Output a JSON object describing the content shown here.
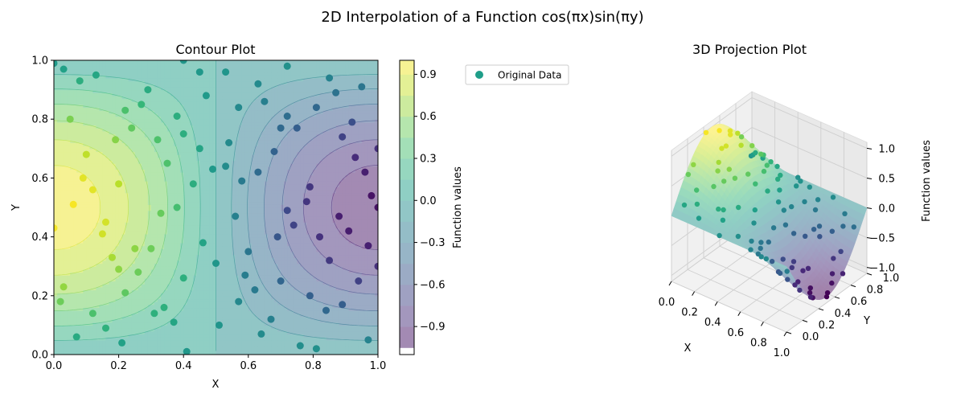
{
  "figure": {
    "suptitle": "2D Interpolation of a Function  cos(πx)sin(πy)"
  },
  "chart_data": [
    {
      "type": "contour",
      "title": "Contour Plot",
      "xlabel": "X",
      "ylabel": "Y",
      "xlim": [
        0,
        1
      ],
      "ylim": [
        0,
        1
      ],
      "xticks": [
        "0.0",
        "0.2",
        "0.4",
        "0.6",
        "0.8",
        "1.0"
      ],
      "yticks": [
        "0.0",
        "0.2",
        "0.4",
        "0.6",
        "0.8",
        "1.0"
      ],
      "function": "cos(pi*x)*sin(pi*y)",
      "colormap": "viridis",
      "alpha": 0.5,
      "levels": [
        -1.05,
        -0.9,
        -0.75,
        -0.6,
        -0.45,
        -0.3,
        -0.15,
        0.0,
        0.15,
        0.3,
        0.45,
        0.6,
        0.75,
        0.9,
        1.0
      ],
      "colorbar": {
        "label": "Function values",
        "range": [
          -1.1,
          1.0
        ],
        "ticks": [
          "0.9",
          "0.6",
          "0.3",
          "0.0",
          "−0.3",
          "−0.6",
          "−0.9"
        ],
        "tick_values": [
          0.9,
          0.6,
          0.3,
          0.0,
          -0.3,
          -0.6,
          -0.9
        ]
      },
      "points": [
        [
          0.03,
          0.97
        ],
        [
          0.13,
          0.95
        ],
        [
          0.08,
          0.93
        ],
        [
          0.29,
          0.9
        ],
        [
          0.27,
          0.85
        ],
        [
          0.22,
          0.83
        ],
        [
          0.05,
          0.8
        ],
        [
          0.24,
          0.77
        ],
        [
          0.19,
          0.73
        ],
        [
          0.32,
          0.73
        ],
        [
          0.1,
          0.68
        ],
        [
          0.35,
          0.65
        ],
        [
          0.09,
          0.6
        ],
        [
          0.2,
          0.58
        ],
        [
          0.12,
          0.56
        ],
        [
          0.06,
          0.51
        ],
        [
          0.16,
          0.45
        ],
        [
          0.33,
          0.48
        ],
        [
          0.38,
          0.5
        ],
        [
          0.0,
          0.43
        ],
        [
          0.15,
          0.41
        ],
        [
          0.18,
          0.33
        ],
        [
          0.3,
          0.36
        ],
        [
          0.25,
          0.36
        ],
        [
          0.2,
          0.29
        ],
        [
          0.26,
          0.28
        ],
        [
          0.4,
          0.26
        ],
        [
          0.03,
          0.23
        ],
        [
          0.22,
          0.21
        ],
        [
          0.02,
          0.18
        ],
        [
          0.34,
          0.16
        ],
        [
          0.12,
          0.14
        ],
        [
          0.31,
          0.14
        ],
        [
          0.37,
          0.11
        ],
        [
          0.16,
          0.09
        ],
        [
          0.07,
          0.06
        ],
        [
          0.21,
          0.04
        ],
        [
          0.41,
          0.01
        ],
        [
          0.38,
          0.81
        ],
        [
          0.4,
          0.75
        ],
        [
          0.43,
          0.58
        ],
        [
          0.47,
          0.88
        ],
        [
          0.45,
          0.7
        ],
        [
          0.46,
          0.38
        ],
        [
          0.45,
          0.96
        ],
        [
          0.49,
          0.63
        ],
        [
          0.5,
          0.31
        ],
        [
          0.51,
          0.1
        ],
        [
          0.53,
          0.96
        ],
        [
          0.53,
          0.64
        ],
        [
          0.54,
          0.72
        ],
        [
          0.56,
          0.47
        ],
        [
          0.57,
          0.84
        ],
        [
          0.58,
          0.59
        ],
        [
          0.59,
          0.27
        ],
        [
          0.6,
          0.35
        ],
        [
          0.63,
          0.92
        ],
        [
          0.62,
          0.22
        ],
        [
          0.57,
          0.18
        ],
        [
          0.63,
          0.62
        ],
        [
          0.65,
          0.86
        ],
        [
          0.64,
          0.07
        ],
        [
          0.67,
          0.12
        ],
        [
          0.68,
          0.69
        ],
        [
          0.69,
          0.4
        ],
        [
          0.7,
          0.25
        ],
        [
          0.7,
          0.77
        ],
        [
          0.72,
          0.81
        ],
        [
          0.72,
          0.49
        ],
        [
          0.74,
          0.44
        ],
        [
          0.75,
          0.77
        ],
        [
          0.76,
          0.03
        ],
        [
          0.78,
          0.52
        ],
        [
          0.79,
          0.57
        ],
        [
          0.79,
          0.2
        ],
        [
          0.81,
          0.02
        ],
        [
          0.81,
          0.84
        ],
        [
          0.82,
          0.4
        ],
        [
          0.84,
          0.15
        ],
        [
          0.85,
          0.94
        ],
        [
          0.85,
          0.32
        ],
        [
          0.87,
          0.89
        ],
        [
          0.88,
          0.47
        ],
        [
          0.89,
          0.17
        ],
        [
          0.89,
          0.74
        ],
        [
          0.91,
          0.42
        ],
        [
          0.92,
          0.79
        ],
        [
          0.93,
          0.67
        ],
        [
          0.94,
          0.25
        ],
        [
          0.95,
          0.91
        ],
        [
          0.96,
          0.62
        ],
        [
          0.97,
          0.37
        ],
        [
          0.98,
          0.54
        ],
        [
          0.97,
          0.05
        ],
        [
          1.0,
          0.7
        ],
        [
          1.0,
          0.3
        ],
        [
          1.0,
          0.5
        ],
        [
          0.0,
          0.99
        ],
        [
          0.4,
          1.0
        ],
        [
          0.72,
          0.98
        ]
      ]
    },
    {
      "type": "surface3d",
      "title": "3D Projection Plot",
      "xlabel": "X",
      "ylabel": "Y",
      "zlabel": "Function values",
      "xlim": [
        0,
        1
      ],
      "ylim": [
        0,
        1
      ],
      "zlim": [
        -1.1,
        1.1
      ],
      "xticks": [
        "0.0",
        "0.2",
        "0.4",
        "0.6",
        "0.8",
        "1.0"
      ],
      "yticks": [
        "0.0",
        "0.2",
        "0.4",
        "0.6",
        "0.8",
        "1.0"
      ],
      "zticks": [
        "−1.0",
        "−0.5",
        "0.0",
        "0.5",
        "1.0"
      ],
      "function": "cos(pi*x)*sin(pi*y)",
      "colormap": "viridis",
      "alpha": 0.5,
      "legend": {
        "location": "upper-left, outside",
        "entries": [
          {
            "label": "Original Data",
            "color": "#1f9e89",
            "marker": "circle"
          }
        ]
      }
    }
  ]
}
